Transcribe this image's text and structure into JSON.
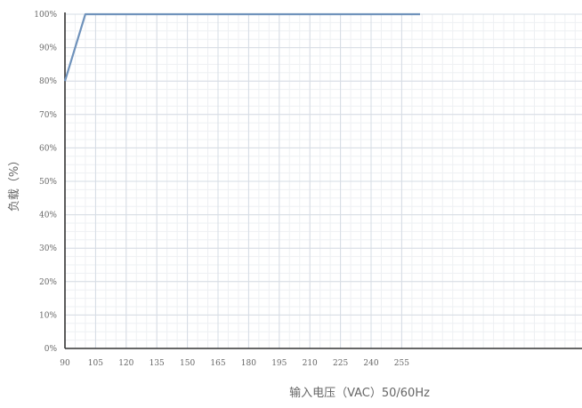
{
  "chart_data": {
    "type": "line",
    "title": "",
    "xlabel": "输入电压（VAC）50/60Hz",
    "ylabel": "负载（%）",
    "x_ticks": [
      90,
      105,
      120,
      135,
      150,
      165,
      180,
      195,
      210,
      225,
      240,
      255
    ],
    "y_ticks": [
      "0%",
      "10%",
      "20%",
      "30%",
      "40%",
      "50%",
      "60%",
      "70%",
      "80%",
      "90%",
      "100%"
    ],
    "xlim": [
      90,
      264
    ],
    "ylim": [
      0,
      100
    ],
    "grid": true,
    "series": [
      {
        "color": "#6f92bb",
        "x": [
          90,
          100,
          264
        ],
        "y": [
          80,
          100,
          100
        ]
      }
    ]
  }
}
